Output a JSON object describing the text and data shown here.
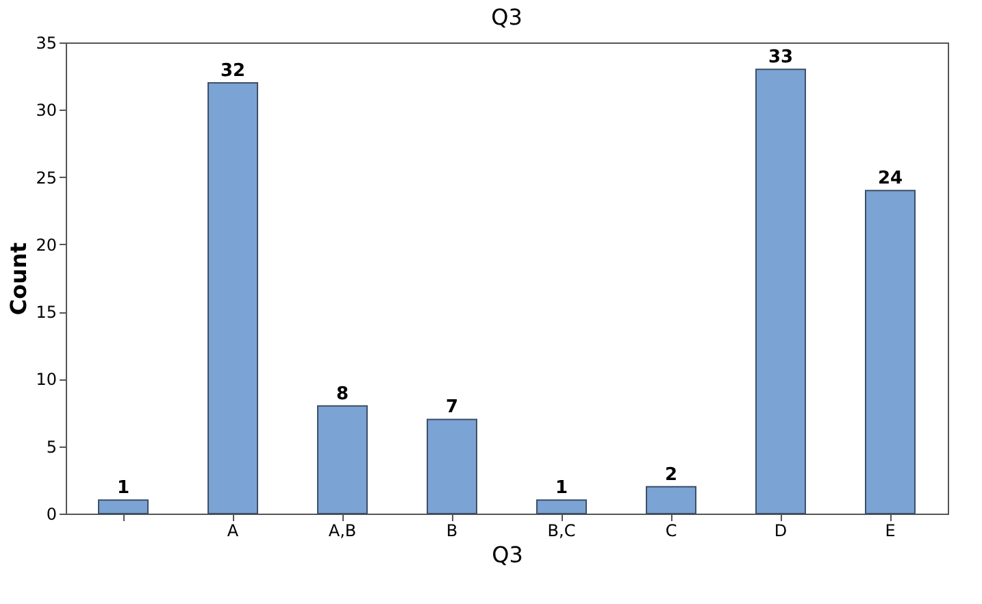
{
  "chart_data": {
    "type": "bar",
    "title": "Q3",
    "xlabel": "Q3",
    "ylabel": "Count",
    "categories": [
      null,
      "A",
      "A,B",
      "B",
      "B,C",
      "C",
      "D",
      "E"
    ],
    "values": [
      1,
      32,
      8,
      7,
      1,
      2,
      33,
      24
    ],
    "color": "#7ba3d4",
    "ylim": [
      0,
      35
    ],
    "yticks": [
      0,
      5,
      10,
      15,
      20,
      25,
      30,
      35
    ],
    "grid": false,
    "data_labels": true
  }
}
